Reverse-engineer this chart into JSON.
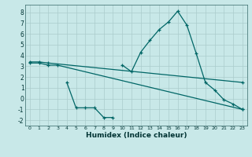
{
  "line1_x": [
    10,
    11,
    12,
    13,
    14,
    15,
    16,
    17,
    18,
    19,
    20,
    21,
    22,
    23
  ],
  "line1_y": [
    3.1,
    2.5,
    4.3,
    5.4,
    6.4,
    7.1,
    8.1,
    6.8,
    4.2,
    1.5,
    0.8,
    -0.1,
    -0.5,
    -1.0
  ],
  "line2_x": [
    0,
    1,
    2,
    23
  ],
  "line2_y": [
    3.4,
    3.4,
    3.3,
    1.5
  ],
  "line3_x": [
    0,
    1,
    2,
    3,
    23
  ],
  "line3_y": [
    3.3,
    3.3,
    3.1,
    3.1,
    -1.0
  ],
  "line4_x": [
    4,
    5,
    6,
    7,
    8,
    9
  ],
  "line4_y": [
    1.5,
    -0.85,
    -0.85,
    -0.85,
    -1.75,
    -1.75
  ],
  "color": "#006666",
  "bg_color": "#c8e8e8",
  "grid_color": "#aacccc",
  "xlabel": "Humidex (Indice chaleur)",
  "xlim": [
    -0.5,
    23.5
  ],
  "ylim": [
    -2.5,
    8.7
  ],
  "yticks": [
    -2,
    -1,
    0,
    1,
    2,
    3,
    4,
    5,
    6,
    7,
    8
  ],
  "xticks": [
    0,
    1,
    2,
    3,
    4,
    5,
    6,
    7,
    8,
    9,
    10,
    11,
    12,
    13,
    14,
    15,
    16,
    17,
    18,
    19,
    20,
    21,
    22,
    23
  ]
}
